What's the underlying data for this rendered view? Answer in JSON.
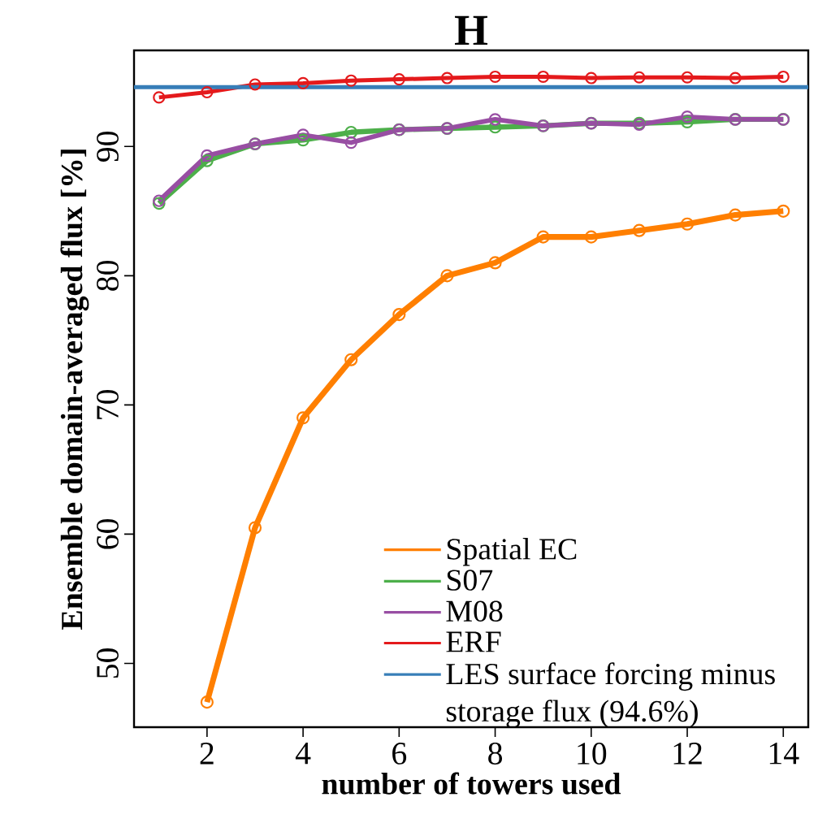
{
  "chart_data": {
    "type": "line",
    "title": "H",
    "xlabel": "number of towers used",
    "ylabel": "Ensemble domain-averaged flux [%]",
    "x": [
      1,
      2,
      3,
      4,
      5,
      6,
      7,
      8,
      9,
      10,
      11,
      12,
      13,
      14
    ],
    "series": [
      {
        "name": "Spatial EC",
        "color": "#ff7f00",
        "values": [
          null,
          47.0,
          60.5,
          69.0,
          73.5,
          77.0,
          80.0,
          81.0,
          83.0,
          83.0,
          83.5,
          84.0,
          84.7,
          85.0
        ]
      },
      {
        "name": "S07",
        "color": "#4daf4a",
        "values": [
          85.6,
          88.9,
          90.2,
          90.5,
          91.1,
          91.3,
          91.4,
          91.5,
          91.6,
          91.8,
          91.8,
          91.9,
          92.1,
          92.1
        ]
      },
      {
        "name": "M08",
        "color": "#984ea3",
        "values": [
          85.8,
          89.3,
          90.2,
          90.9,
          90.3,
          91.3,
          91.4,
          92.1,
          91.6,
          91.8,
          91.7,
          92.3,
          92.1,
          92.1
        ]
      },
      {
        "name": "ERF",
        "color": "#e41a1c",
        "values": [
          93.8,
          94.2,
          94.8,
          94.9,
          95.1,
          95.2,
          95.3,
          95.4,
          95.4,
          95.3,
          95.35,
          95.35,
          95.3,
          95.4
        ]
      }
    ],
    "ref_lines": [
      {
        "axis": "y",
        "value": 94.6,
        "label": "LES surface forcing minus storage flux (94.6%)",
        "color": "#377eb8"
      }
    ],
    "xlim": [
      0.48,
      14.52
    ],
    "ylim": [
      45.06,
      97.44
    ],
    "xticks": [
      2,
      4,
      6,
      8,
      10,
      12,
      14
    ],
    "yticks": [
      50,
      60,
      70,
      80,
      90
    ],
    "marker": "circle",
    "line_style": "solid",
    "legend": "bottom right",
    "grid": false
  }
}
